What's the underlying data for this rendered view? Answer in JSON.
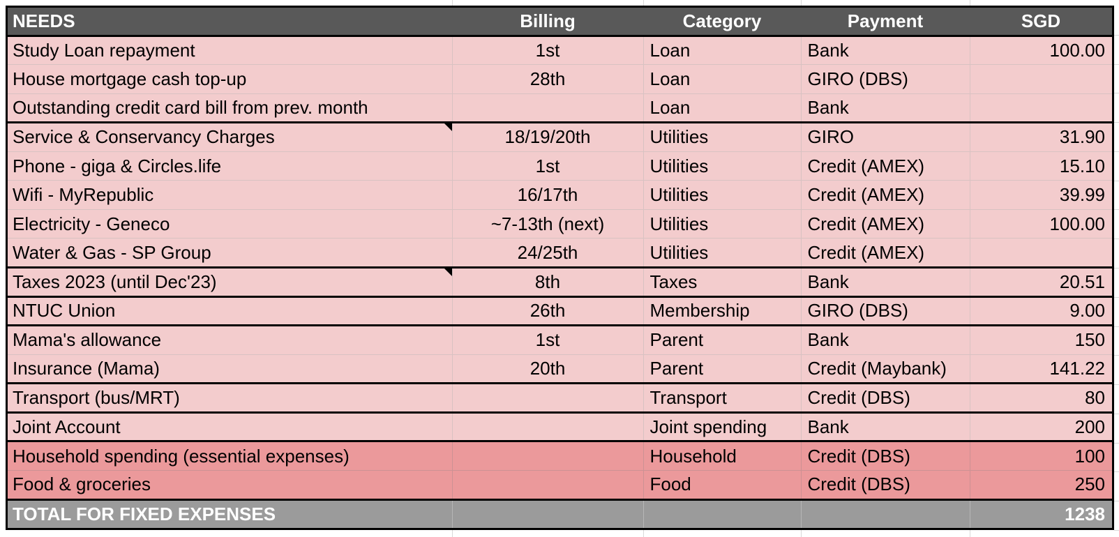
{
  "table": {
    "columns": [
      {
        "key": "needs",
        "label": "NEEDS",
        "header_align": "left",
        "cell_align": "left"
      },
      {
        "key": "billing",
        "label": "Billing",
        "header_align": "center",
        "cell_align": "center"
      },
      {
        "key": "category",
        "label": "Category",
        "header_align": "center",
        "cell_align": "left"
      },
      {
        "key": "payment",
        "label": "Payment",
        "header_align": "center",
        "cell_align": "left"
      },
      {
        "key": "sgd",
        "label": "SGD",
        "header_align": "center",
        "cell_align": "right"
      }
    ],
    "rows": [
      {
        "needs": "Study Loan repayment",
        "billing": "1st",
        "category": "Loan",
        "payment": "Bank",
        "sgd": "100.00",
        "tone": "pink",
        "comment_marker": false,
        "group_end": false
      },
      {
        "needs": "House mortgage cash top-up",
        "billing": "28th",
        "category": "Loan",
        "payment": "GIRO (DBS)",
        "sgd": "",
        "tone": "pink",
        "comment_marker": false,
        "group_end": false
      },
      {
        "needs": "Outstanding credit card bill from prev. month",
        "billing": "",
        "category": "Loan",
        "payment": "Bank",
        "sgd": "",
        "tone": "pink",
        "comment_marker": false,
        "group_end": true
      },
      {
        "needs": "Service & Conservancy Charges",
        "billing": "18/19/20th",
        "category": "Utilities",
        "payment": "GIRO",
        "sgd": "31.90",
        "tone": "pink",
        "comment_marker": true,
        "group_end": false
      },
      {
        "needs": "Phone - giga & Circles.life",
        "billing": "1st",
        "category": "Utilities",
        "payment": "Credit (AMEX)",
        "sgd": "15.10",
        "tone": "pink",
        "comment_marker": false,
        "group_end": false
      },
      {
        "needs": "Wifi - MyRepublic",
        "billing": "16/17th",
        "category": "Utilities",
        "payment": "Credit (AMEX)",
        "sgd": "39.99",
        "tone": "pink",
        "comment_marker": false,
        "group_end": false
      },
      {
        "needs": "Electricity - Geneco",
        "billing": "~7-13th (next)",
        "category": "Utilities",
        "payment": "Credit (AMEX)",
        "sgd": "100.00",
        "tone": "pink",
        "comment_marker": false,
        "group_end": false
      },
      {
        "needs": "Water & Gas - SP Group",
        "billing": "24/25th",
        "category": "Utilities",
        "payment": "Credit (AMEX)",
        "sgd": "",
        "tone": "pink",
        "comment_marker": false,
        "group_end": true
      },
      {
        "needs": "Taxes 2023 (until Dec'23)",
        "billing": "8th",
        "category": "Taxes",
        "payment": "Bank",
        "sgd": "20.51",
        "tone": "pink",
        "comment_marker": true,
        "group_end": true
      },
      {
        "needs": "NTUC Union",
        "billing": "26th",
        "category": "Membership",
        "payment": "GIRO (DBS)",
        "sgd": "9.00",
        "tone": "pink",
        "comment_marker": false,
        "group_end": true
      },
      {
        "needs": "Mama's allowance",
        "billing": "1st",
        "category": "Parent",
        "payment": "Bank",
        "sgd": "150",
        "tone": "pink",
        "comment_marker": false,
        "group_end": false
      },
      {
        "needs": "Insurance (Mama)",
        "billing": "20th",
        "category": "Parent",
        "payment": "Credit (Maybank)",
        "sgd": "141.22",
        "tone": "pink",
        "comment_marker": false,
        "group_end": true
      },
      {
        "needs": "Transport (bus/MRT)",
        "billing": "",
        "category": "Transport",
        "payment": "Credit (DBS)",
        "sgd": "80",
        "tone": "pink",
        "comment_marker": false,
        "group_end": true
      },
      {
        "needs": "Joint Account",
        "billing": "",
        "category": "Joint spending",
        "payment": "Bank",
        "sgd": "200",
        "tone": "pink",
        "comment_marker": false,
        "group_end": true
      },
      {
        "needs": "Household spending (essential expenses)",
        "billing": "",
        "category": "Household",
        "payment": "Credit (DBS)",
        "sgd": "100",
        "tone": "salmon",
        "comment_marker": false,
        "group_end": false
      },
      {
        "needs": "Food & groceries",
        "billing": "",
        "category": "Food",
        "payment": "Credit (DBS)",
        "sgd": "250",
        "tone": "salmon",
        "comment_marker": false,
        "group_end": true
      }
    ],
    "total": {
      "label": "TOTAL FOR FIXED EXPENSES",
      "sgd": "1238"
    }
  },
  "icons": {
    "comment_indicator": "black corner triangle marking a cell note"
  },
  "colors": {
    "header_bg": "#595959",
    "header_text": "#FFFFFF",
    "row_pink": "#F3CCCD",
    "row_salmon": "#EB999B",
    "total_bg": "#9B9B9B",
    "total_text": "#FFFFFF",
    "cell_text": "#000000",
    "group_border": "#000000",
    "margin_gridline": "#D9D9D9"
  }
}
